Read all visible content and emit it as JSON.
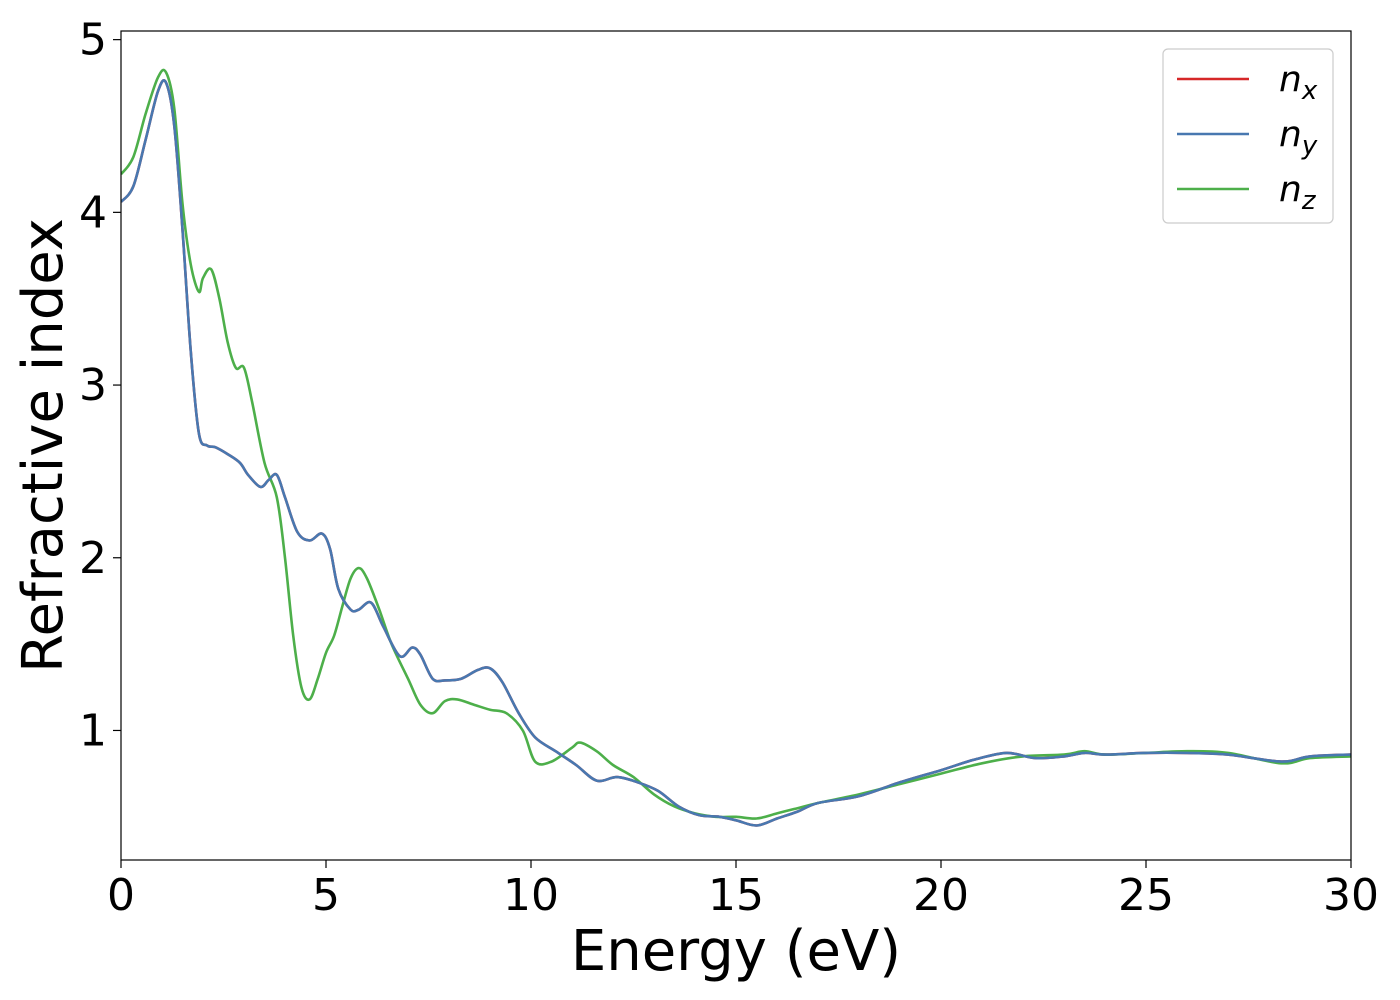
{
  "chart_data": {
    "type": "line",
    "title": "",
    "xlabel": "Energy (eV)",
    "ylabel": "Refractive index",
    "xlim": [
      0,
      30
    ],
    "ylim": [
      0.25,
      5.05
    ],
    "xticks": [
      0,
      5,
      10,
      15,
      20,
      25,
      30
    ],
    "yticks": [
      1,
      2,
      3,
      4,
      5
    ],
    "grid": false,
    "legend_position": "top-right",
    "series": [
      {
        "name": "n_x",
        "legend_main": "n",
        "legend_sub": "x",
        "color": "#d62728",
        "x": [
          0,
          0.3,
          0.6,
          0.9,
          1.1,
          1.3,
          1.5,
          1.7,
          1.9,
          2.1,
          2.3,
          2.6,
          2.9,
          3.1,
          3.4,
          3.6,
          3.8,
          4.0,
          4.3,
          4.6,
          4.9,
          5.1,
          5.3,
          5.6,
          5.8,
          6.1,
          6.4,
          6.8,
          7.1,
          7.3,
          7.6,
          7.9,
          8.3,
          8.7,
          9.0,
          9.3,
          9.7,
          10.1,
          10.6,
          11.1,
          11.6,
          12.1,
          12.6,
          13.1,
          13.6,
          14.1,
          14.6,
          15.0,
          15.5,
          16.0,
          16.5,
          17.0,
          18.0,
          19.0,
          20.0,
          20.8,
          21.6,
          22.3,
          23.0,
          23.5,
          24.0,
          25.0,
          26.0,
          27.0,
          28.3,
          29.0,
          30.0
        ],
        "values": [
          4.06,
          4.15,
          4.42,
          4.7,
          4.75,
          4.5,
          3.9,
          3.2,
          2.72,
          2.65,
          2.64,
          2.6,
          2.55,
          2.48,
          2.41,
          2.45,
          2.48,
          2.35,
          2.15,
          2.1,
          2.14,
          2.05,
          1.82,
          1.7,
          1.7,
          1.74,
          1.6,
          1.43,
          1.48,
          1.44,
          1.3,
          1.29,
          1.3,
          1.35,
          1.36,
          1.28,
          1.1,
          0.96,
          0.88,
          0.8,
          0.71,
          0.73,
          0.7,
          0.65,
          0.56,
          0.51,
          0.5,
          0.48,
          0.45,
          0.49,
          0.53,
          0.58,
          0.62,
          0.7,
          0.77,
          0.83,
          0.87,
          0.84,
          0.85,
          0.87,
          0.86,
          0.87,
          0.87,
          0.86,
          0.82,
          0.85,
          0.86
        ]
      },
      {
        "name": "n_y",
        "legend_main": "n",
        "legend_sub": "y",
        "color": "#4878b0",
        "x": [
          0,
          0.3,
          0.6,
          0.9,
          1.1,
          1.3,
          1.5,
          1.7,
          1.9,
          2.1,
          2.3,
          2.6,
          2.9,
          3.1,
          3.4,
          3.6,
          3.8,
          4.0,
          4.3,
          4.6,
          4.9,
          5.1,
          5.3,
          5.6,
          5.8,
          6.1,
          6.4,
          6.8,
          7.1,
          7.3,
          7.6,
          7.9,
          8.3,
          8.7,
          9.0,
          9.3,
          9.7,
          10.1,
          10.6,
          11.1,
          11.6,
          12.1,
          12.6,
          13.1,
          13.6,
          14.1,
          14.6,
          15.0,
          15.5,
          16.0,
          16.5,
          17.0,
          18.0,
          19.0,
          20.0,
          20.8,
          21.6,
          22.3,
          23.0,
          23.5,
          24.0,
          25.0,
          26.0,
          27.0,
          28.3,
          29.0,
          30.0
        ],
        "values": [
          4.06,
          4.15,
          4.42,
          4.7,
          4.75,
          4.5,
          3.9,
          3.2,
          2.72,
          2.65,
          2.64,
          2.6,
          2.55,
          2.48,
          2.41,
          2.45,
          2.48,
          2.35,
          2.15,
          2.1,
          2.14,
          2.05,
          1.82,
          1.7,
          1.7,
          1.74,
          1.6,
          1.43,
          1.48,
          1.44,
          1.3,
          1.29,
          1.3,
          1.35,
          1.36,
          1.28,
          1.1,
          0.96,
          0.88,
          0.8,
          0.71,
          0.73,
          0.7,
          0.65,
          0.56,
          0.51,
          0.5,
          0.48,
          0.45,
          0.49,
          0.53,
          0.58,
          0.62,
          0.7,
          0.77,
          0.83,
          0.87,
          0.84,
          0.85,
          0.87,
          0.86,
          0.87,
          0.87,
          0.86,
          0.82,
          0.85,
          0.86
        ]
      },
      {
        "name": "n_z",
        "legend_main": "n",
        "legend_sub": "z",
        "color": "#4daf4a",
        "x": [
          0,
          0.3,
          0.6,
          0.9,
          1.1,
          1.3,
          1.5,
          1.7,
          1.9,
          2.0,
          2.2,
          2.4,
          2.6,
          2.8,
          3.0,
          3.2,
          3.5,
          3.8,
          4.0,
          4.2,
          4.4,
          4.6,
          4.8,
          5.0,
          5.2,
          5.4,
          5.6,
          5.8,
          6.0,
          6.3,
          6.6,
          7.0,
          7.3,
          7.6,
          7.9,
          8.2,
          8.6,
          9.0,
          9.4,
          9.8,
          10.1,
          10.5,
          11.0,
          11.2,
          11.6,
          12.0,
          12.5,
          13.0,
          13.5,
          14.0,
          14.5,
          15.0,
          15.5,
          16.0,
          16.5,
          17.0,
          18.0,
          19.0,
          20.0,
          21.0,
          22.0,
          23.0,
          23.5,
          24.0,
          25.0,
          26.0,
          27.0,
          28.3,
          29.0,
          30.0
        ],
        "values": [
          4.22,
          4.32,
          4.57,
          4.78,
          4.81,
          4.6,
          4.05,
          3.7,
          3.54,
          3.62,
          3.67,
          3.5,
          3.25,
          3.1,
          3.1,
          2.9,
          2.55,
          2.35,
          2.0,
          1.55,
          1.25,
          1.18,
          1.3,
          1.45,
          1.55,
          1.72,
          1.88,
          1.94,
          1.88,
          1.7,
          1.5,
          1.3,
          1.15,
          1.1,
          1.17,
          1.18,
          1.15,
          1.12,
          1.1,
          1.0,
          0.82,
          0.82,
          0.9,
          0.93,
          0.88,
          0.8,
          0.73,
          0.63,
          0.56,
          0.52,
          0.5,
          0.5,
          0.49,
          0.52,
          0.55,
          0.58,
          0.63,
          0.69,
          0.75,
          0.81,
          0.85,
          0.86,
          0.88,
          0.86,
          0.87,
          0.88,
          0.87,
          0.81,
          0.84,
          0.85
        ]
      }
    ]
  }
}
